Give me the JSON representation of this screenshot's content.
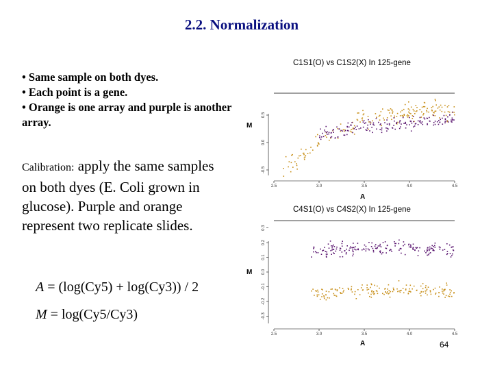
{
  "slide": {
    "title": "2.2. Normalization",
    "bullets": [
      "• Same sample on both dyes.",
      "• Each point is a gene.",
      "• Orange is one array and purple is another array."
    ],
    "calibration_label": "Calibration:",
    "calibration_text": " apply the same samples on both dyes (E. Coli grown in glucose). Purple and orange represent two replicate slides.",
    "formula_a": {
      "lhs": "A",
      "rhs": "= (log(Cy5) + log(Cy3)) / 2"
    },
    "formula_m": {
      "lhs": "M",
      "rhs": "= log(Cy5/Cy3)"
    },
    "page_number": "64"
  },
  "colors": {
    "orange": "#c8901a",
    "purple": "#5a1670"
  },
  "chart_data": [
    {
      "type": "scatter",
      "title": "C1S1(O) vs C1S2(X) In 125-gene",
      "xlabel": "A",
      "ylabel": "M",
      "x_ticks": [
        "2.5",
        "3.0",
        "3.5",
        "4.0",
        "4.5"
      ],
      "y_ticks": [
        "-0.5",
        "0.0",
        "0.5"
      ],
      "xlim": [
        2.5,
        4.5
      ],
      "ylim": [
        -0.6,
        0.9
      ],
      "series": [
        {
          "color": "orange",
          "trend": {
            "x": [
              2.6,
              3.0,
              3.5,
              4.0,
              4.5
            ],
            "y": [
              -0.45,
              0.05,
              0.45,
              0.55,
              0.6
            ]
          },
          "spread": 0.25,
          "count": 180
        },
        {
          "color": "purple",
          "trend": {
            "x": [
              3.0,
              3.5,
              4.0,
              4.5
            ],
            "y": [
              0.15,
              0.3,
              0.35,
              0.45
            ]
          },
          "spread": 0.16,
          "count": 170
        }
      ]
    },
    {
      "type": "scatter",
      "title": "C4S1(O) vs C4S2(X) In 125-gene",
      "xlabel": "A",
      "ylabel": "M",
      "x_ticks": [
        "2.5",
        "3.0",
        "3.5",
        "4.0",
        "4.5"
      ],
      "y_ticks": [
        "-0.3",
        "-0.2",
        "-0.1",
        "0.0",
        "0.1",
        "0.2",
        "0.3"
      ],
      "xlim": [
        2.5,
        4.5
      ],
      "ylim": [
        -0.35,
        0.35
      ],
      "series": [
        {
          "color": "purple",
          "trend": {
            "x": [
              2.9,
              3.5,
              4.0,
              4.5
            ],
            "y": [
              0.15,
              0.16,
              0.17,
              0.15
            ]
          },
          "spread": 0.07,
          "count": 190
        },
        {
          "color": "orange",
          "trend": {
            "x": [
              2.9,
              3.5,
              4.0,
              4.5
            ],
            "y": [
              -0.15,
              -0.12,
              -0.12,
              -0.13
            ]
          },
          "spread": 0.07,
          "count": 170
        }
      ]
    }
  ]
}
